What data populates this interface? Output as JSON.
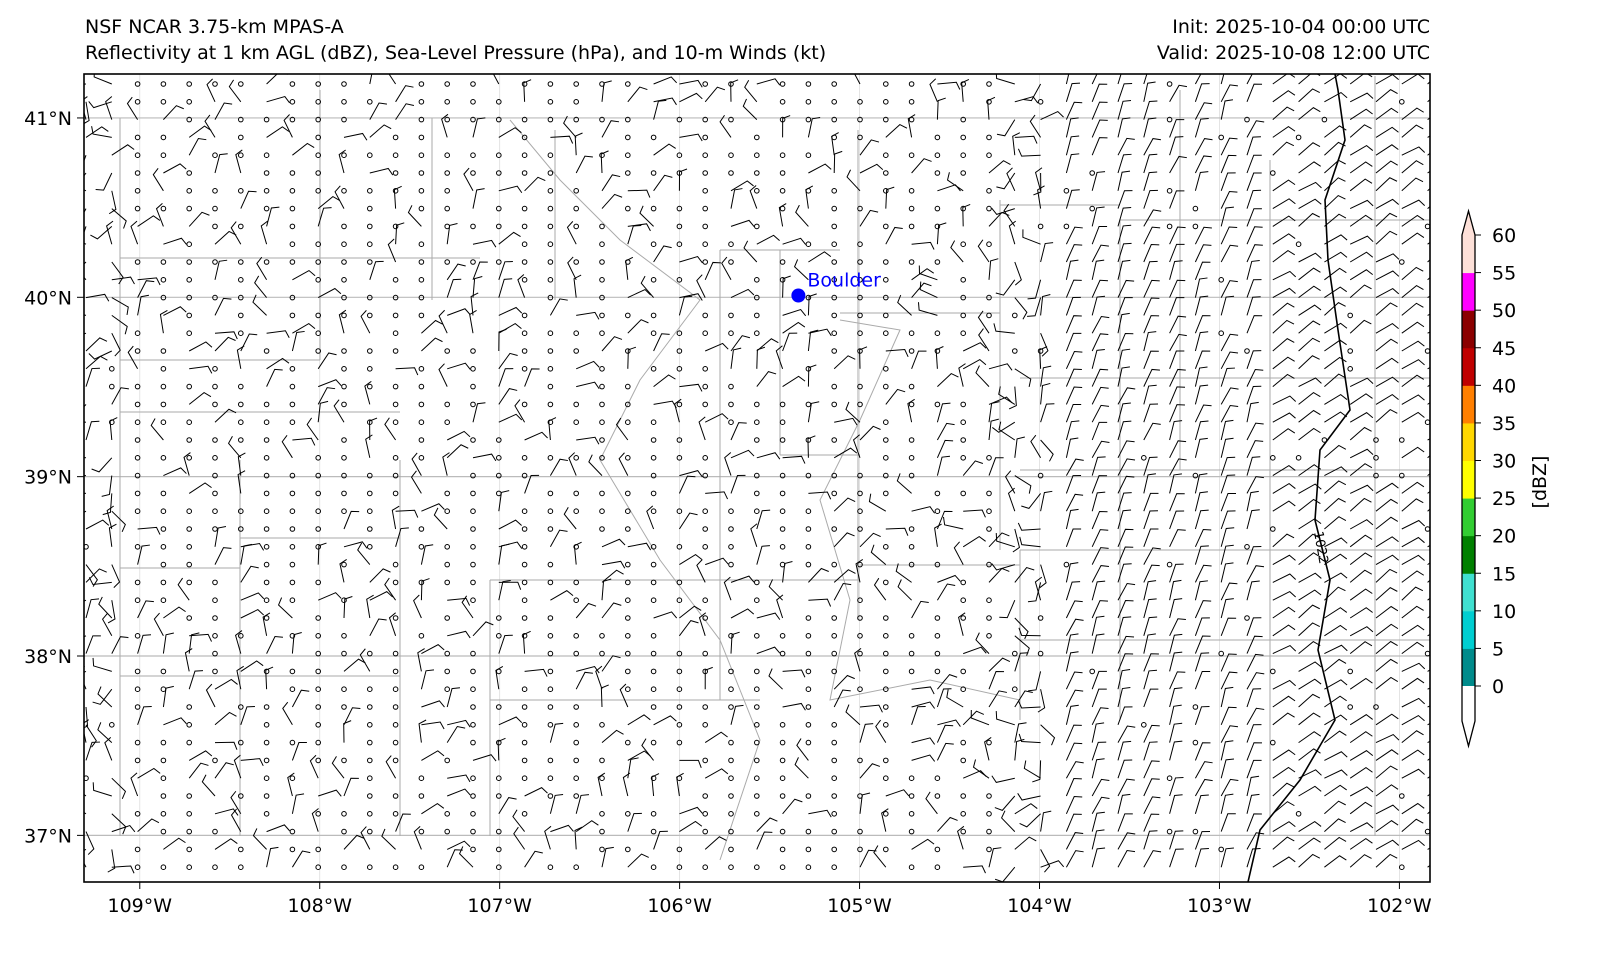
{
  "header": {
    "model": "NSF NCAR 3.75-km MPAS-A",
    "fields": "Reflectivity at 1 km AGL (dBZ), Sea-Level Pressure (hPa), and 10-m Winds (kt)",
    "init": "Init: 2025-10-04 00:00 UTC",
    "valid": "Valid: 2025-10-08 12:00 UTC"
  },
  "map": {
    "lon_range": [
      -109.31,
      -101.83
    ],
    "lat_range": [
      36.74,
      41.245
    ],
    "lon_ticks": [
      {
        "value": -109,
        "label": "109°W"
      },
      {
        "value": -108,
        "label": "108°W"
      },
      {
        "value": -107,
        "label": "107°W"
      },
      {
        "value": -106,
        "label": "106°W"
      },
      {
        "value": -105,
        "label": "105°W"
      },
      {
        "value": -104,
        "label": "104°W"
      },
      {
        "value": -103,
        "label": "103°W"
      },
      {
        "value": -102,
        "label": "102°W"
      }
    ],
    "lat_ticks": [
      {
        "value": 41,
        "label": "41°N"
      },
      {
        "value": 40,
        "label": "40°N"
      },
      {
        "value": 39,
        "label": "39°N"
      },
      {
        "value": 38,
        "label": "38°N"
      },
      {
        "value": 37,
        "label": "37°N"
      }
    ],
    "city": {
      "name": "Boulder",
      "lon": -105.34,
      "lat": 40.01,
      "color": "#0000ff"
    },
    "isobar": {
      "value": 1022,
      "label": "1022"
    }
  },
  "colorbar": {
    "label": "[dBZ]",
    "ticks": [
      "0",
      "5",
      "10",
      "15",
      "20",
      "25",
      "30",
      "35",
      "40",
      "45",
      "50",
      "55",
      "60"
    ],
    "colors": [
      "#008b8b",
      "#00ced1",
      "#40e0d0",
      "#008000",
      "#32cd32",
      "#ffff00",
      "#ffd700",
      "#ff7f00",
      "#c00000",
      "#8b0000",
      "#ff00ff",
      "#fde0d8"
    ]
  }
}
